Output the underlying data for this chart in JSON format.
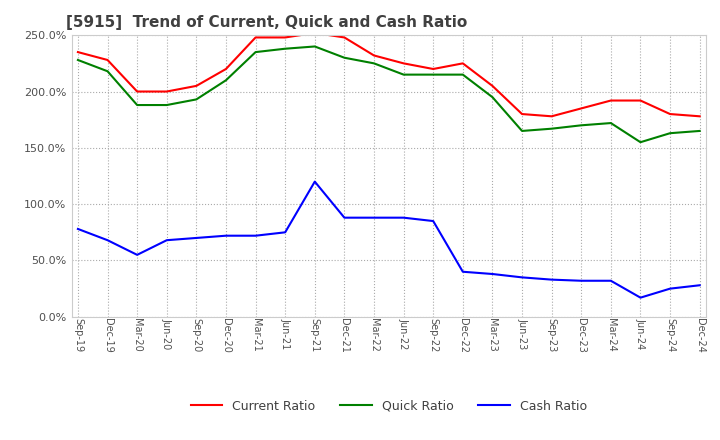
{
  "title": "[5915]  Trend of Current, Quick and Cash Ratio",
  "x_labels": [
    "Sep-19",
    "Dec-19",
    "Mar-20",
    "Jun-20",
    "Sep-20",
    "Dec-20",
    "Mar-21",
    "Jun-21",
    "Sep-21",
    "Dec-21",
    "Mar-22",
    "Jun-22",
    "Sep-22",
    "Dec-22",
    "Mar-23",
    "Jun-23",
    "Sep-23",
    "Dec-23",
    "Mar-24",
    "Jun-24",
    "Sep-24",
    "Dec-24"
  ],
  "current_ratio": [
    235,
    228,
    200,
    200,
    205,
    220,
    248,
    248,
    252,
    248,
    232,
    225,
    220,
    225,
    205,
    180,
    178,
    185,
    192,
    192,
    180,
    178
  ],
  "quick_ratio": [
    228,
    218,
    188,
    188,
    193,
    210,
    235,
    238,
    240,
    230,
    225,
    215,
    215,
    215,
    195,
    165,
    167,
    170,
    172,
    155,
    163,
    165
  ],
  "cash_ratio": [
    78,
    68,
    55,
    68,
    70,
    72,
    72,
    75,
    120,
    88,
    88,
    88,
    85,
    40,
    38,
    35,
    33,
    32,
    32,
    17,
    25,
    28
  ],
  "ylim": [
    0,
    250
  ],
  "yticks": [
    0,
    50,
    100,
    150,
    200,
    250
  ],
  "current_color": "#ff0000",
  "quick_color": "#008000",
  "cash_color": "#0000ff",
  "background_color": "#ffffff",
  "grid_color": "#aaaaaa",
  "title_color": "#404040",
  "line_width": 1.5
}
